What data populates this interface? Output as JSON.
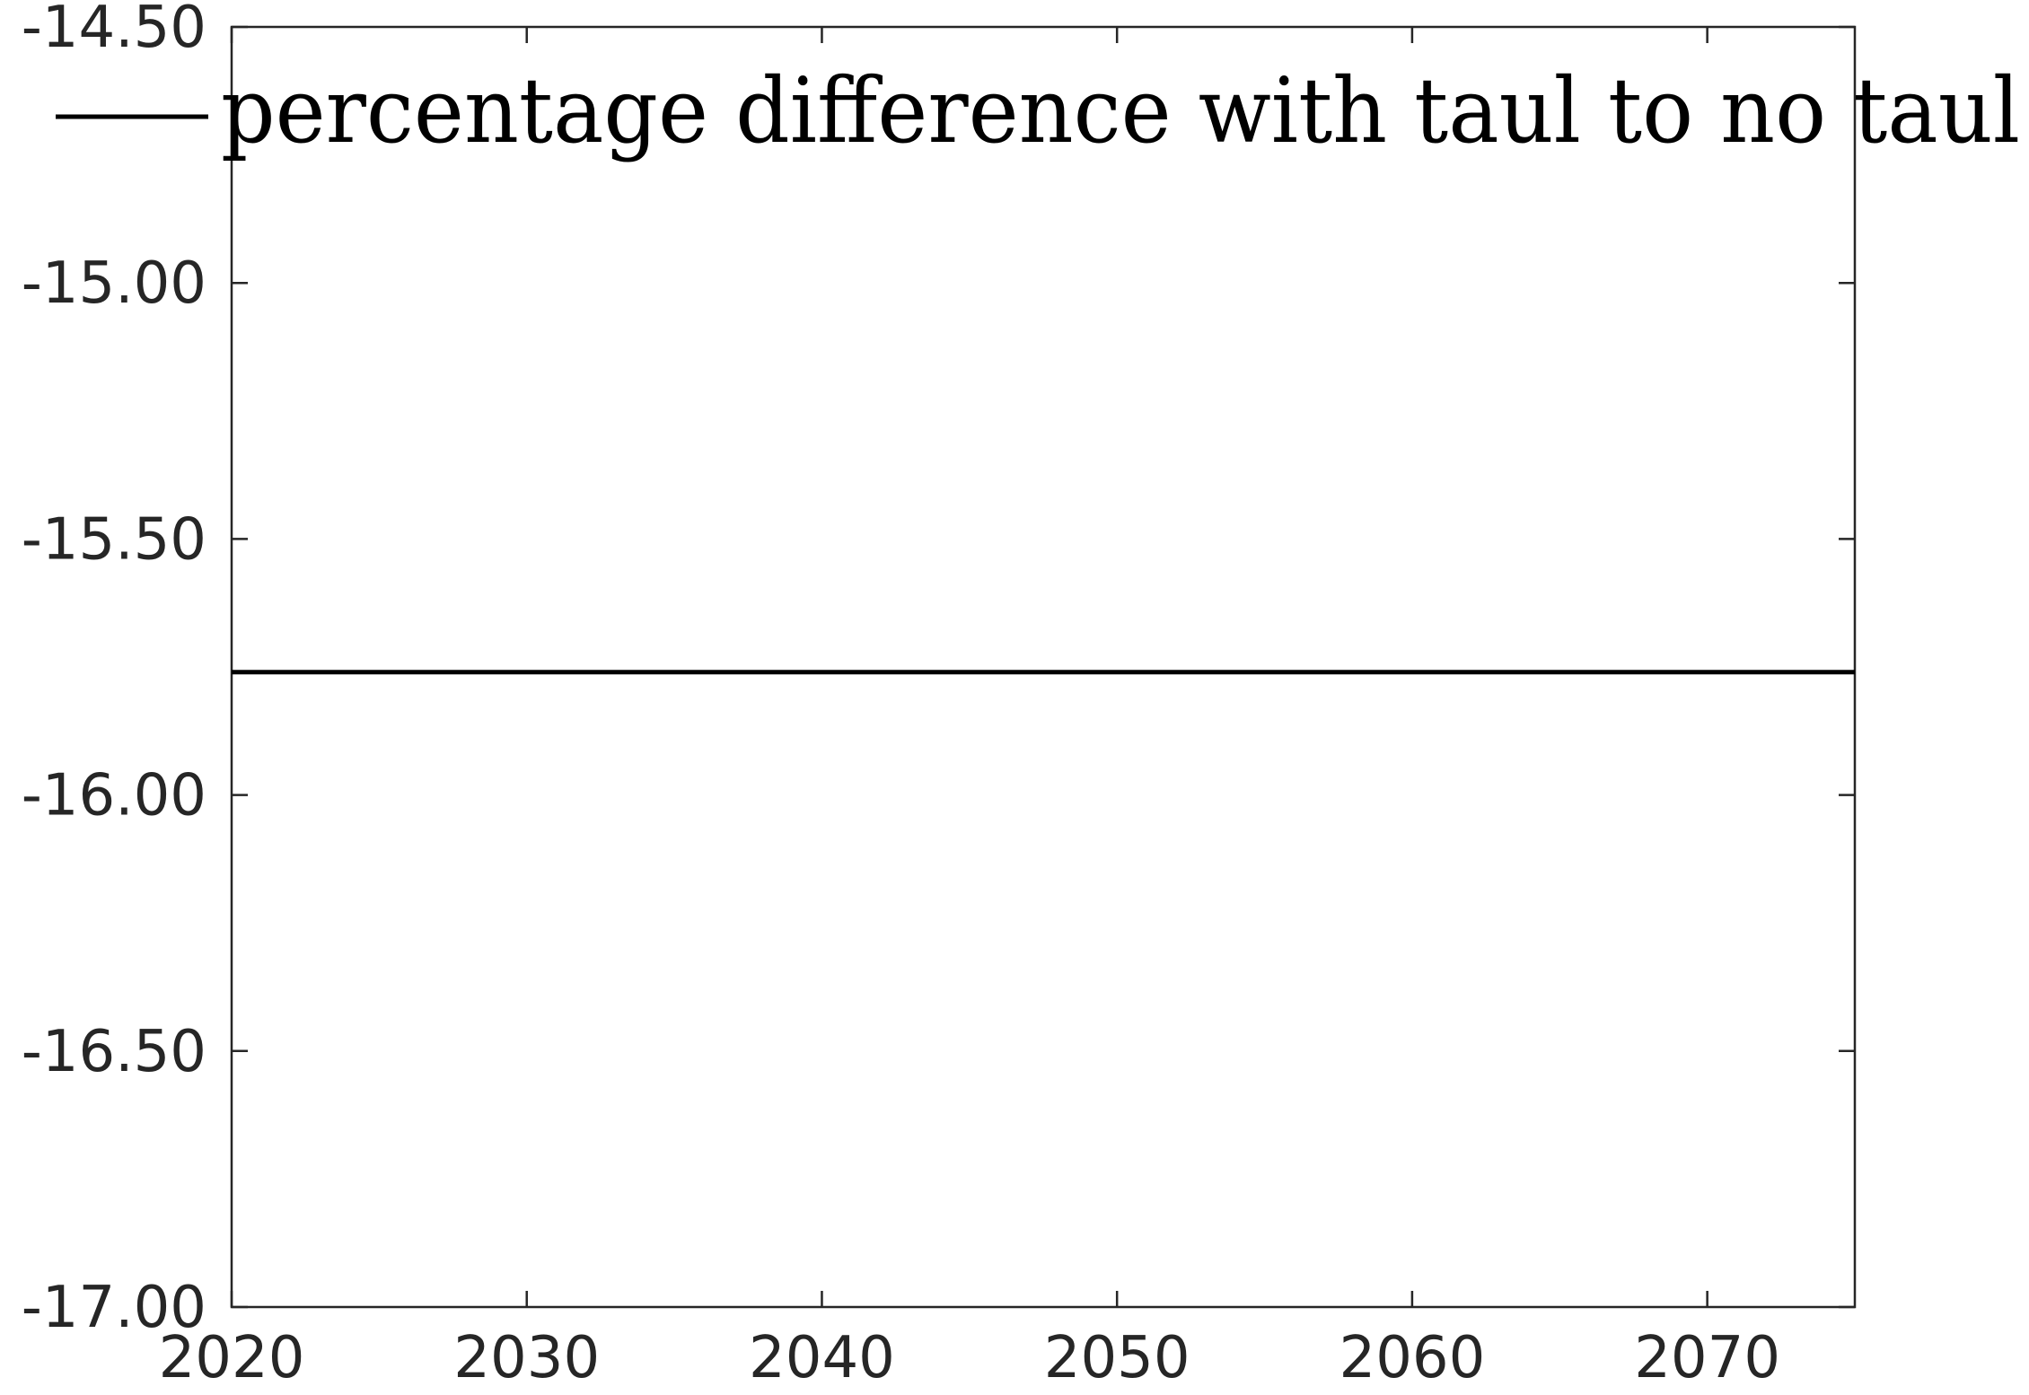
{
  "chart_data": {
    "type": "line",
    "title": "",
    "xlabel": "",
    "ylabel": "",
    "xlim": [
      2020,
      2075
    ],
    "ylim": [
      -17.0,
      -14.5
    ],
    "x_ticks": [
      2020,
      2030,
      2040,
      2050,
      2060,
      2070
    ],
    "x_tick_labels": [
      "2020",
      "2030",
      "2040",
      "2050",
      "2060",
      "2070"
    ],
    "y_ticks": [
      -14.5,
      -15.0,
      -15.5,
      -16.0,
      -16.5,
      -17.0
    ],
    "y_tick_labels": [
      "-14.50",
      "-15.00",
      "-15.50",
      "-16.00",
      "-16.50",
      "-17.00"
    ],
    "grid": false,
    "legend_position": "top",
    "series": [
      {
        "name": "percentage difference with taul to no taul",
        "color": "#000000",
        "x": [
          2020,
          2025,
          2030,
          2035,
          2040,
          2045,
          2050,
          2055,
          2060,
          2065,
          2070,
          2075
        ],
        "y": [
          -15.76,
          -15.76,
          -15.76,
          -15.76,
          -15.76,
          -15.76,
          -15.76,
          -15.76,
          -15.76,
          -15.76,
          -15.76,
          -15.76
        ]
      }
    ]
  }
}
